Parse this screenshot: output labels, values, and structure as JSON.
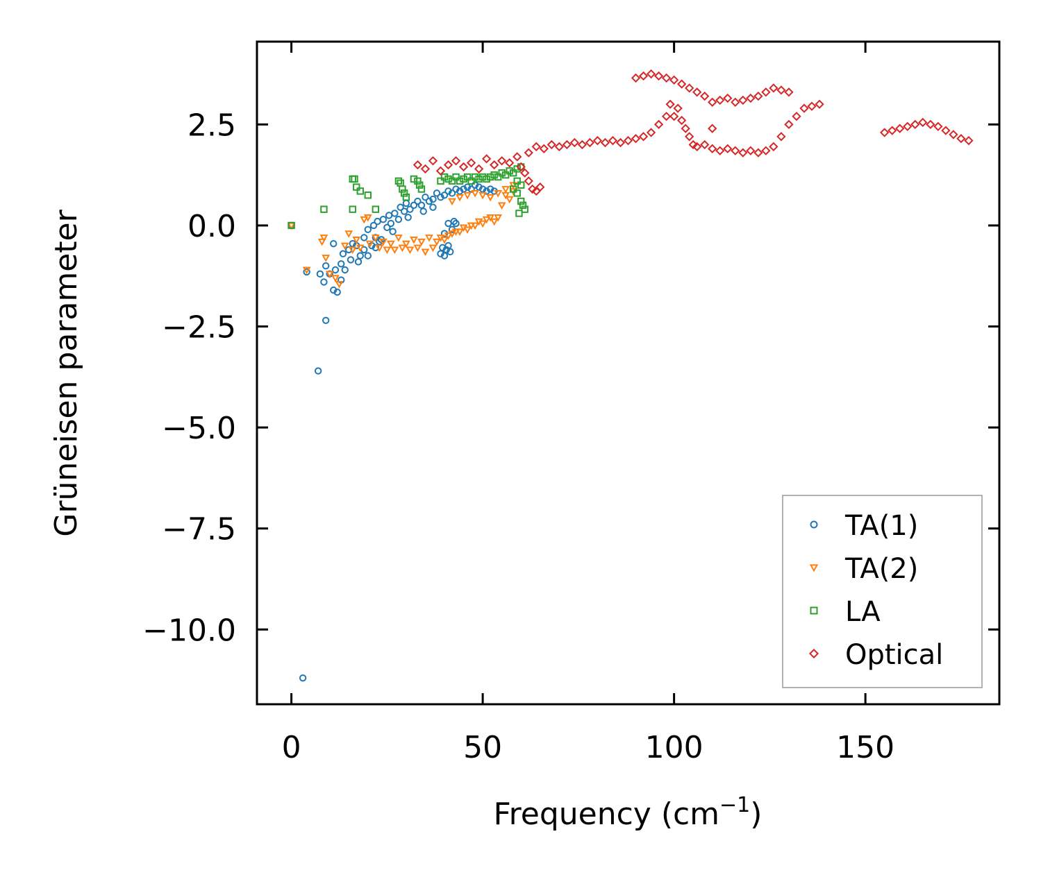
{
  "chart_data": {
    "type": "scatter",
    "title": "",
    "xlabel": "Frequency (cm",
    "xlabel_sup": "−1",
    "xlabel_close": ")",
    "ylabel": "Grüneisen parameter",
    "xlim": [
      -9,
      185
    ],
    "ylim": [
      -11.85,
      4.55
    ],
    "xticks": [
      0,
      50,
      100,
      150
    ],
    "xtick_labels": [
      "0",
      "50",
      "100",
      "150"
    ],
    "yticks": [
      2.5,
      0.0,
      -2.5,
      -5.0,
      -7.5,
      -10.0
    ],
    "ytick_labels": [
      "2.5",
      "0.0",
      "−2.5",
      "−5.0",
      "−7.5",
      "−10.0"
    ],
    "legend_position": "lower-right",
    "series": [
      {
        "name": "TA(1)",
        "marker": "circle",
        "color": "#1f77b4",
        "points": [
          [
            0,
            0
          ],
          [
            3,
            -11.2
          ],
          [
            7,
            -3.6
          ],
          [
            9,
            -2.35
          ],
          [
            4,
            -1.15
          ],
          [
            7.5,
            -1.2
          ],
          [
            8.5,
            -1.4
          ],
          [
            9,
            -1.0
          ],
          [
            10,
            -1.2
          ],
          [
            11,
            -1.6
          ],
          [
            11.5,
            -1.1
          ],
          [
            12,
            -1.65
          ],
          [
            11,
            -0.45
          ],
          [
            13,
            -1.35
          ],
          [
            13,
            -0.95
          ],
          [
            14,
            -1.1
          ],
          [
            13.5,
            -0.7
          ],
          [
            15,
            -0.6
          ],
          [
            15.5,
            -0.85
          ],
          [
            16,
            -0.45
          ],
          [
            17,
            -0.5
          ],
          [
            17.5,
            -0.9
          ],
          [
            18,
            -0.75
          ],
          [
            19,
            -0.6
          ],
          [
            19,
            -0.3
          ],
          [
            20,
            -0.75
          ],
          [
            20,
            -0.1
          ],
          [
            21,
            -0.5
          ],
          [
            21.5,
            0.0
          ],
          [
            22,
            -0.3
          ],
          [
            22.5,
            0.1
          ],
          [
            23,
            -0.4
          ],
          [
            24,
            0.15
          ],
          [
            25,
            -0.05
          ],
          [
            25.5,
            0.25
          ],
          [
            26,
            0.05
          ],
          [
            27,
            0.3
          ],
          [
            28,
            0.15
          ],
          [
            28.5,
            0.45
          ],
          [
            29.5,
            0.35
          ],
          [
            30,
            0.55
          ],
          [
            31,
            0.4
          ],
          [
            32,
            0.5
          ],
          [
            33,
            0.6
          ],
          [
            34,
            0.5
          ],
          [
            35,
            0.7
          ],
          [
            36,
            0.6
          ],
          [
            37,
            0.65
          ],
          [
            38,
            0.8
          ],
          [
            39,
            0.7
          ],
          [
            40,
            0.75
          ],
          [
            41,
            0.85
          ],
          [
            42,
            0.8
          ],
          [
            43,
            0.9
          ],
          [
            44,
            0.85
          ],
          [
            45,
            0.9
          ],
          [
            46,
            0.95
          ],
          [
            47,
            0.9
          ],
          [
            48,
            1.0
          ],
          [
            49,
            0.95
          ],
          [
            50,
            0.9
          ],
          [
            51,
            0.85
          ],
          [
            52,
            0.9
          ],
          [
            53,
            0.85
          ],
          [
            39,
            -0.7
          ],
          [
            39.5,
            -0.55
          ],
          [
            40,
            -0.75
          ],
          [
            40.5,
            -0.6
          ],
          [
            41,
            -0.5
          ],
          [
            41.5,
            -0.65
          ],
          [
            40,
            -0.2
          ],
          [
            41,
            0.05
          ],
          [
            42,
            -0.1
          ],
          [
            42.5,
            0.1
          ],
          [
            43,
            0.05
          ],
          [
            22,
            -0.55
          ],
          [
            23.5,
            -0.35
          ],
          [
            26.5,
            -0.15
          ],
          [
            30.5,
            0.2
          ],
          [
            34.5,
            0.35
          ],
          [
            37,
            0.45
          ]
        ]
      },
      {
        "name": "TA(2)",
        "marker": "triangle-down",
        "color": "#ff7f0e",
        "points": [
          [
            0,
            0
          ],
          [
            4,
            -1.1
          ],
          [
            8,
            -0.4
          ],
          [
            8.5,
            -0.3
          ],
          [
            9,
            -0.8
          ],
          [
            10,
            -1.2
          ],
          [
            11.5,
            -1.3
          ],
          [
            12.5,
            -1.45
          ],
          [
            14,
            -0.5
          ],
          [
            15,
            -0.2
          ],
          [
            16,
            -0.6
          ],
          [
            17,
            -0.35
          ],
          [
            18,
            -0.55
          ],
          [
            19,
            0.15
          ],
          [
            20,
            0.2
          ],
          [
            20.5,
            -0.45
          ],
          [
            22,
            -0.3
          ],
          [
            23,
            -0.55
          ],
          [
            24,
            -0.4
          ],
          [
            25,
            -0.6
          ],
          [
            26,
            -0.45
          ],
          [
            27,
            -0.6
          ],
          [
            28,
            -0.3
          ],
          [
            29,
            -0.55
          ],
          [
            30,
            -0.45
          ],
          [
            31,
            -0.6
          ],
          [
            32,
            -0.35
          ],
          [
            33,
            -0.55
          ],
          [
            34,
            -0.4
          ],
          [
            35,
            -0.65
          ],
          [
            36,
            -0.3
          ],
          [
            37,
            -0.55
          ],
          [
            38,
            -0.4
          ],
          [
            39,
            -0.3
          ],
          [
            40,
            -0.35
          ],
          [
            41,
            -0.25
          ],
          [
            42,
            -0.2
          ],
          [
            43,
            -0.15
          ],
          [
            44,
            -0.15
          ],
          [
            45,
            -0.05
          ],
          [
            46,
            -0.1
          ],
          [
            47,
            0.0
          ],
          [
            48,
            0.0
          ],
          [
            49,
            0.1
          ],
          [
            50,
            0.05
          ],
          [
            51,
            0.15
          ],
          [
            52,
            0.2
          ],
          [
            53,
            0.1
          ],
          [
            54,
            0.2
          ],
          [
            55,
            0.5
          ],
          [
            56,
            0.75
          ],
          [
            57,
            0.65
          ],
          [
            58,
            0.85
          ],
          [
            42,
            0.6
          ],
          [
            44,
            0.7
          ],
          [
            46,
            0.75
          ],
          [
            48,
            0.8
          ],
          [
            50,
            0.75
          ],
          [
            52,
            0.7
          ],
          [
            54,
            0.8
          ],
          [
            56,
            0.9
          ],
          [
            58,
            1.0
          ]
        ]
      },
      {
        "name": "LA",
        "marker": "square",
        "color": "#2ca02c",
        "points": [
          [
            0,
            0
          ],
          [
            8.5,
            0.4
          ],
          [
            16,
            1.15
          ],
          [
            16.5,
            1.15
          ],
          [
            17,
            0.95
          ],
          [
            18,
            0.85
          ],
          [
            16,
            0.4
          ],
          [
            20,
            0.75
          ],
          [
            22,
            0.4
          ],
          [
            28,
            1.1
          ],
          [
            28.5,
            1.05
          ],
          [
            29,
            0.9
          ],
          [
            29.5,
            0.8
          ],
          [
            30,
            0.7
          ],
          [
            32,
            1.15
          ],
          [
            33,
            1.1
          ],
          [
            33.5,
            1.0
          ],
          [
            34,
            0.9
          ],
          [
            39,
            1.1
          ],
          [
            40,
            1.2
          ],
          [
            41,
            1.15
          ],
          [
            42,
            1.1
          ],
          [
            43,
            1.2
          ],
          [
            44,
            1.1
          ],
          [
            45,
            1.15
          ],
          [
            46,
            1.2
          ],
          [
            47,
            1.1
          ],
          [
            48,
            1.2
          ],
          [
            49,
            1.15
          ],
          [
            50,
            1.2
          ],
          [
            51,
            1.15
          ],
          [
            52,
            1.2
          ],
          [
            53,
            1.25
          ],
          [
            54,
            1.2
          ],
          [
            55,
            1.3
          ],
          [
            56,
            1.25
          ],
          [
            57,
            1.35
          ],
          [
            58,
            1.3
          ],
          [
            59,
            1.4
          ],
          [
            60,
            1.45
          ],
          [
            59,
            0.8
          ],
          [
            60,
            0.6
          ],
          [
            60.5,
            0.5
          ],
          [
            61,
            0.4
          ],
          [
            59.5,
            0.3
          ],
          [
            59,
            1.1
          ],
          [
            58,
            0.9
          ],
          [
            60,
            1.0
          ]
        ]
      },
      {
        "name": "Optical",
        "marker": "diamond",
        "color": "#d62728",
        "points": [
          [
            33,
            1.5
          ],
          [
            35,
            1.4
          ],
          [
            37,
            1.6
          ],
          [
            39,
            1.35
          ],
          [
            41,
            1.5
          ],
          [
            43,
            1.6
          ],
          [
            45,
            1.45
          ],
          [
            47,
            1.55
          ],
          [
            49,
            1.4
          ],
          [
            51,
            1.65
          ],
          [
            53,
            1.5
          ],
          [
            55,
            1.6
          ],
          [
            57,
            1.55
          ],
          [
            59,
            1.7
          ],
          [
            60,
            1.45
          ],
          [
            61,
            1.3
          ],
          [
            62,
            1.1
          ],
          [
            63,
            0.9
          ],
          [
            64,
            0.85
          ],
          [
            65,
            0.95
          ],
          [
            62,
            1.8
          ],
          [
            64,
            1.95
          ],
          [
            66,
            1.9
          ],
          [
            68,
            2.0
          ],
          [
            70,
            1.95
          ],
          [
            72,
            2.0
          ],
          [
            74,
            2.05
          ],
          [
            76,
            2.0
          ],
          [
            78,
            2.05
          ],
          [
            80,
            2.1
          ],
          [
            82,
            2.05
          ],
          [
            84,
            2.1
          ],
          [
            86,
            2.05
          ],
          [
            88,
            2.1
          ],
          [
            90,
            2.15
          ],
          [
            92,
            2.2
          ],
          [
            94,
            2.3
          ],
          [
            96,
            2.5
          ],
          [
            98,
            2.7
          ],
          [
            99,
            3.0
          ],
          [
            100,
            2.7
          ],
          [
            101,
            2.9
          ],
          [
            102,
            2.6
          ],
          [
            103,
            2.4
          ],
          [
            104,
            2.2
          ],
          [
            105,
            2.0
          ],
          [
            106,
            1.95
          ],
          [
            108,
            2.0
          ],
          [
            110,
            1.9
          ],
          [
            112,
            1.85
          ],
          [
            114,
            1.9
          ],
          [
            116,
            1.85
          ],
          [
            118,
            1.8
          ],
          [
            120,
            1.85
          ],
          [
            122,
            1.8
          ],
          [
            124,
            1.85
          ],
          [
            126,
            1.95
          ],
          [
            128,
            2.2
          ],
          [
            130,
            2.5
          ],
          [
            132,
            2.7
          ],
          [
            134,
            2.9
          ],
          [
            136,
            2.95
          ],
          [
            138,
            3.0
          ],
          [
            130,
            3.3
          ],
          [
            128,
            3.35
          ],
          [
            126,
            3.4
          ],
          [
            124,
            3.3
          ],
          [
            122,
            3.2
          ],
          [
            120,
            3.15
          ],
          [
            118,
            3.1
          ],
          [
            116,
            3.05
          ],
          [
            114,
            3.15
          ],
          [
            112,
            3.1
          ],
          [
            110,
            3.05
          ],
          [
            108,
            3.2
          ],
          [
            106,
            3.3
          ],
          [
            104,
            3.4
          ],
          [
            102,
            3.5
          ],
          [
            100,
            3.6
          ],
          [
            98,
            3.65
          ],
          [
            96,
            3.7
          ],
          [
            94,
            3.75
          ],
          [
            92,
            3.7
          ],
          [
            90,
            3.65
          ],
          [
            110,
            2.4
          ],
          [
            155,
            2.3
          ],
          [
            157,
            2.35
          ],
          [
            159,
            2.4
          ],
          [
            161,
            2.45
          ],
          [
            163,
            2.5
          ],
          [
            165,
            2.55
          ],
          [
            167,
            2.5
          ],
          [
            169,
            2.45
          ],
          [
            171,
            2.35
          ],
          [
            173,
            2.25
          ],
          [
            175,
            2.15
          ],
          [
            177,
            2.1
          ]
        ]
      }
    ]
  }
}
